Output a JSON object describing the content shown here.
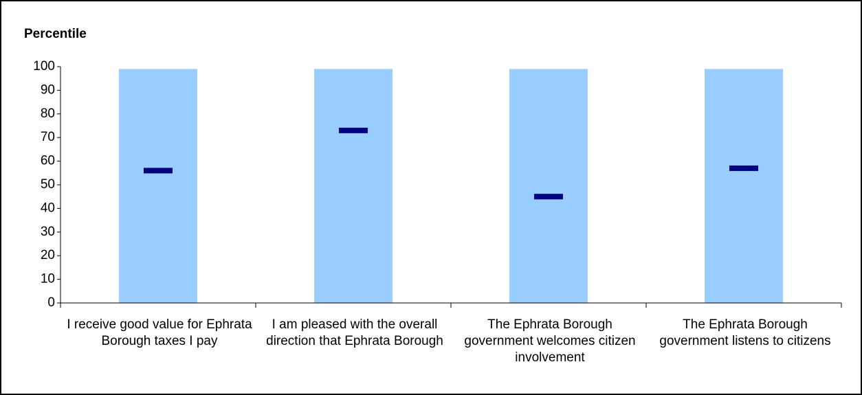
{
  "chart_data": {
    "type": "range-marker",
    "title": "Percentile",
    "categories": [
      "I receive good value for Ephrata Borough taxes I pay",
      "I am pleased with the overall direction that Ephrata Borough",
      "The Ephrata Borough government welcomes citizen involvement",
      "The Ephrata Borough government listens to citizens"
    ],
    "bar_values": [
      99,
      99,
      99,
      99
    ],
    "bar_color": "#99ccff",
    "values": [
      56,
      73,
      45,
      57
    ],
    "color": "#000080",
    "ylim": [
      0,
      100
    ],
    "yticks": [
      0,
      10,
      20,
      30,
      40,
      50,
      60,
      70,
      80,
      90,
      100
    ],
    "grid": false
  }
}
